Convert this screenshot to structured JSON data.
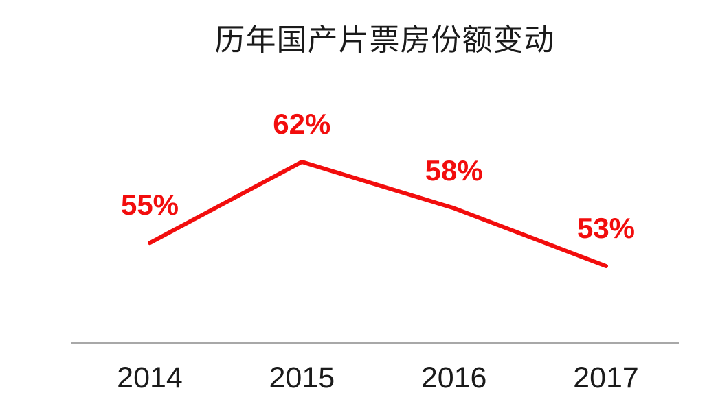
{
  "chart_data": {
    "type": "line",
    "title": "历年国产片票房份额变动",
    "categories": [
      "2014",
      "2015",
      "2016",
      "2017"
    ],
    "values": [
      55,
      62,
      58,
      53
    ],
    "data_labels": [
      "55%",
      "62%",
      "58%",
      "53%"
    ],
    "xlabel": "",
    "ylabel": "",
    "ylim": [
      50,
      65
    ],
    "grid": false,
    "legend": false,
    "y_axis_visible": false,
    "colors": {
      "line": "#F20D0D",
      "data_label": "#F20D0D",
      "title": "#1A1A1A",
      "tick_label": "#1A1A1A",
      "axis_line": "#A8A8A8",
      "background": "#FFFFFF"
    }
  }
}
